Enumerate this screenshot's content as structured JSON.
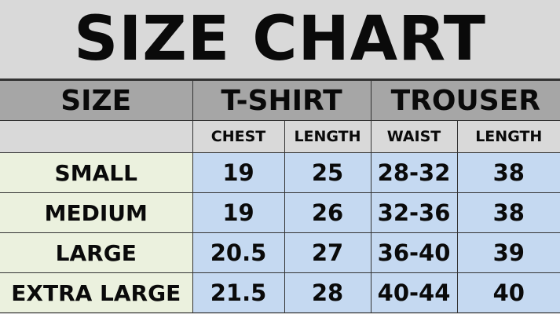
{
  "title": "SIZE CHART",
  "header": {
    "size": "SIZE",
    "tshirt": "T-SHIRT",
    "trouser": "TROUSER"
  },
  "subheader": [
    "CHEST",
    "LENGTH",
    "WAIST",
    "LENGTH"
  ],
  "rows": [
    {
      "size": "SMALL",
      "chest": "19",
      "tlength": "25",
      "waist": "28-32",
      "trlength": "38"
    },
    {
      "size": "MEDIUM",
      "chest": "19",
      "tlength": "26",
      "waist": "32-36",
      "trlength": "38"
    },
    {
      "size": "LARGE",
      "chest": "20.5",
      "tlength": "27",
      "waist": "36-40",
      "trlength": "39"
    },
    {
      "size": "EXTRA LARGE",
      "chest": "21.5",
      "tlength": "28",
      "waist": "40-44",
      "trlength": "40"
    }
  ],
  "colors": {
    "title_bg": "#d9d9d9",
    "header_bg": "#a6a6a6",
    "size_col_bg": "#ebf1de",
    "data_bg": "#c5d9f1"
  }
}
